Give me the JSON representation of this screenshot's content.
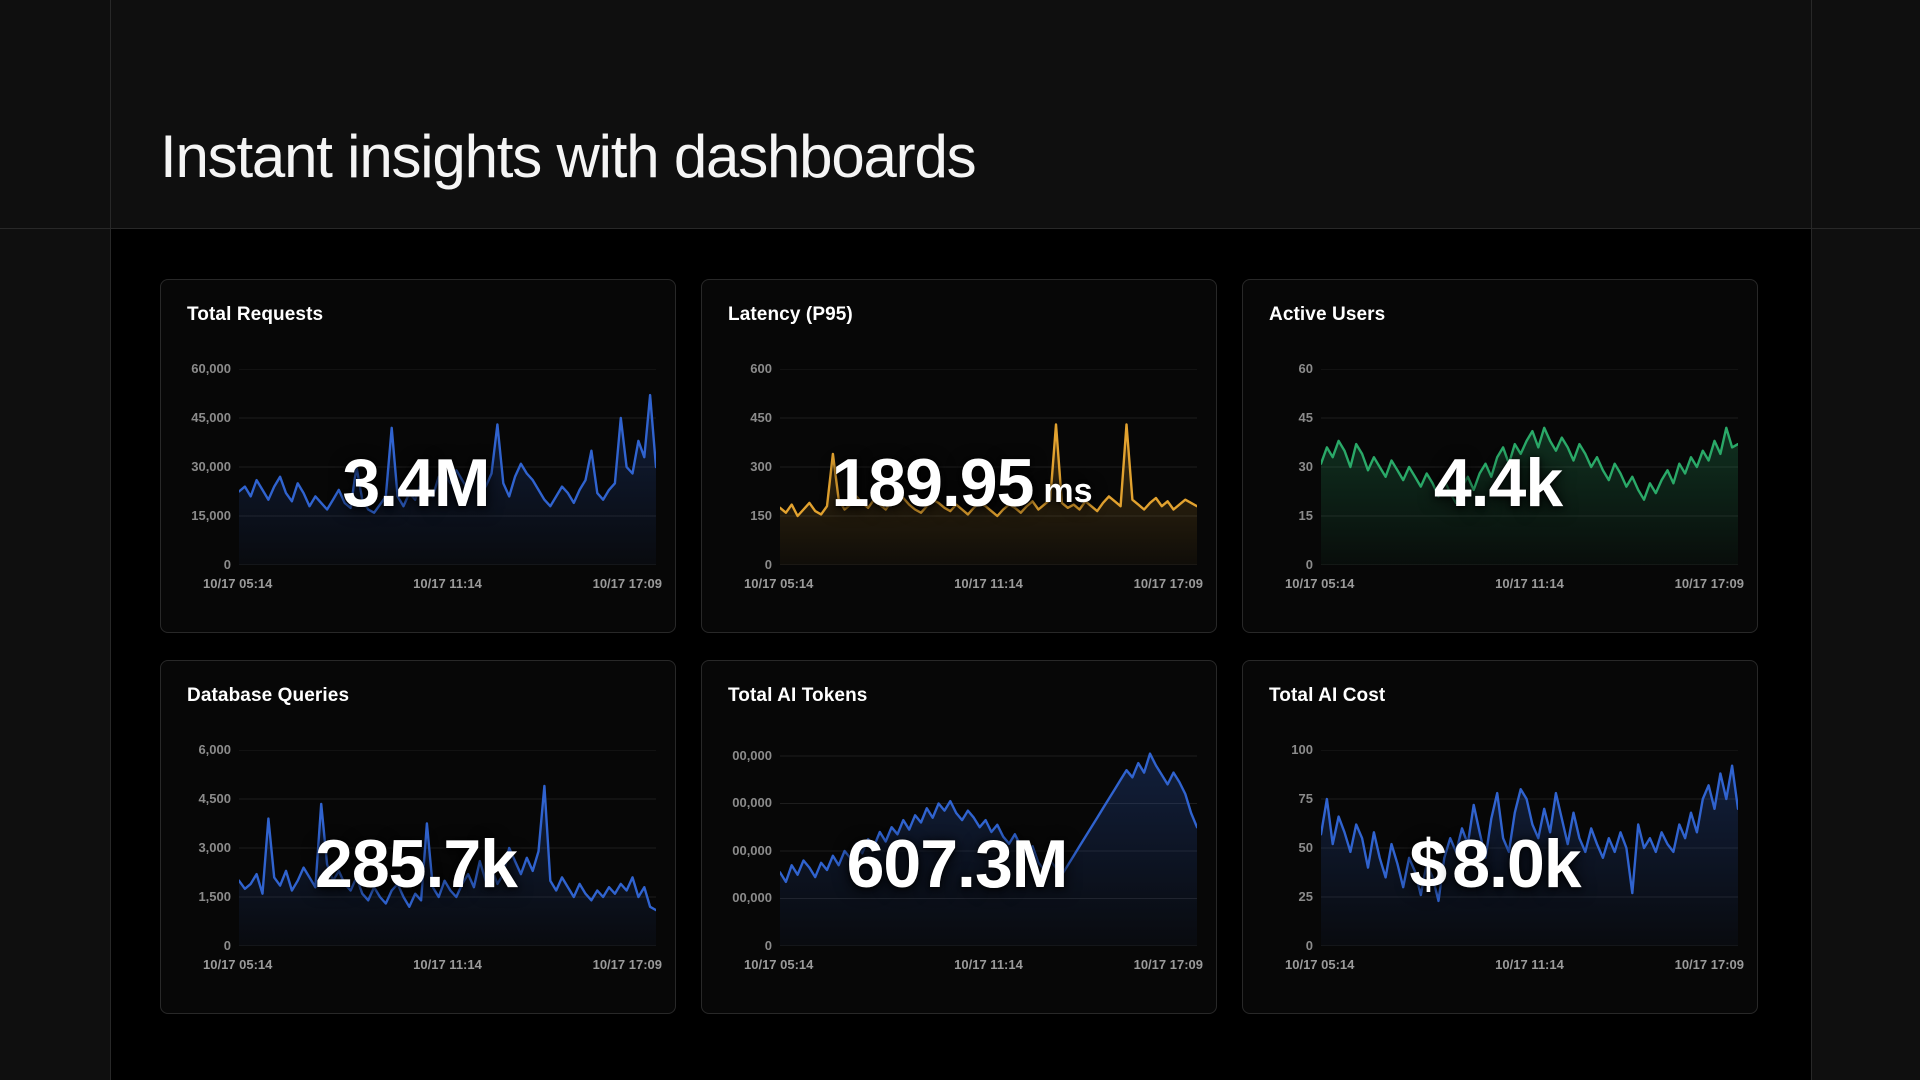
{
  "page": {
    "title": "Instant insights with dashboards"
  },
  "colors": {
    "page_bg": "#0f0f0f",
    "panel_bg": "#000000",
    "card_bg": "#070707",
    "card_border": "#282828",
    "grid_line": "#1e1e1e",
    "y_tick_color": "#8b8b8b",
    "x_tick_color": "#9a9a9a",
    "title_color": "#f5f5f5",
    "blue": "#3063cf",
    "orange": "#e2a22f",
    "green": "#2aa968"
  },
  "chart_data": [
    {
      "type": "line",
      "title": "Total Requests",
      "big_value": "3.4M",
      "value_prefix": "",
      "value_unit": "",
      "line_color": "#3063cf",
      "x": [
        "10/17 05:14",
        "10/17 11:14",
        "10/17 17:09"
      ],
      "ylim": [
        0,
        60000
      ],
      "yticks": [
        0,
        15000,
        30000,
        45000,
        60000
      ],
      "ytick_labels": [
        "0",
        "15,000",
        "30,000",
        "45,000",
        "60,000"
      ],
      "grid": true,
      "legend": "none",
      "values": [
        22500,
        24000,
        21000,
        26000,
        23000,
        20000,
        24000,
        27000,
        22000,
        19500,
        25000,
        22000,
        18000,
        21000,
        19000,
        17000,
        20000,
        23000,
        19000,
        17500,
        30000,
        20000,
        17000,
        16000,
        18500,
        21000,
        42000,
        21000,
        18000,
        22000,
        20000,
        25000,
        23000,
        21000,
        27000,
        28000,
        25000,
        29000,
        26000,
        23000,
        30000,
        27000,
        24000,
        28000,
        43000,
        25000,
        21000,
        27000,
        31000,
        28000,
        26000,
        23000,
        20000,
        18000,
        21000,
        24000,
        22000,
        19000,
        23000,
        26000,
        35000,
        22000,
        20000,
        23000,
        25000,
        45000,
        30000,
        28000,
        38000,
        33000,
        52000,
        30000
      ]
    },
    {
      "type": "line",
      "title": "Latency (P95)",
      "big_value": "189.95",
      "value_prefix": "",
      "value_unit": "ms",
      "line_color": "#e2a22f",
      "x": [
        "10/17 05:14",
        "10/17 11:14",
        "10/17 17:09"
      ],
      "ylim": [
        0,
        600
      ],
      "yticks": [
        0,
        150,
        300,
        450,
        600
      ],
      "ytick_labels": [
        "0",
        "150",
        "300",
        "450",
        "600"
      ],
      "grid": true,
      "legend": "none",
      "values": [
        175,
        160,
        185,
        150,
        170,
        190,
        165,
        155,
        180,
        340,
        200,
        170,
        185,
        210,
        190,
        175,
        200,
        185,
        170,
        195,
        220,
        205,
        185,
        170,
        160,
        180,
        200,
        190,
        175,
        165,
        185,
        170,
        155,
        175,
        190,
        180,
        165,
        150,
        170,
        185,
        175,
        160,
        180,
        195,
        170,
        185,
        200,
        430,
        190,
        175,
        185,
        170,
        195,
        180,
        165,
        190,
        210,
        195,
        180,
        430,
        200,
        185,
        170,
        190,
        205,
        180,
        195,
        170,
        185,
        200,
        190,
        180
      ]
    },
    {
      "type": "line",
      "title": "Active Users",
      "big_value": "4.4k",
      "value_prefix": "",
      "value_unit": "",
      "line_color": "#2aa968",
      "x": [
        "10/17 05:14",
        "10/17 11:14",
        "10/17 17:09"
      ],
      "ylim": [
        0,
        60
      ],
      "yticks": [
        0,
        15,
        30,
        45,
        60
      ],
      "ytick_labels": [
        "0",
        "15",
        "30",
        "45",
        "60"
      ],
      "grid": true,
      "legend": "none",
      "values": [
        31,
        36,
        33,
        38,
        35,
        30,
        37,
        34,
        29,
        33,
        30,
        27,
        32,
        29,
        26,
        30,
        27,
        24,
        28,
        25,
        21,
        26,
        22,
        19,
        24,
        27,
        23,
        28,
        31,
        27,
        33,
        36,
        31,
        37,
        34,
        38,
        41,
        36,
        42,
        38,
        35,
        39,
        36,
        32,
        37,
        34,
        30,
        33,
        29,
        26,
        31,
        28,
        24,
        27,
        23,
        20,
        25,
        22,
        26,
        29,
        25,
        31,
        28,
        33,
        30,
        35,
        32,
        38,
        34,
        42,
        36,
        37
      ]
    },
    {
      "type": "line",
      "title": "Database Queries",
      "big_value": "285.7k",
      "value_prefix": "",
      "value_unit": "",
      "line_color": "#3063cf",
      "x": [
        "10/17 05:14",
        "10/17 11:14",
        "10/17 17:09"
      ],
      "ylim": [
        0,
        6000
      ],
      "yticks": [
        0,
        1500,
        3000,
        4500,
        6000
      ],
      "ytick_labels": [
        "0",
        "1,500",
        "3,000",
        "4,500",
        "6,000"
      ],
      "grid": true,
      "legend": "none",
      "values": [
        2000,
        1750,
        1900,
        2200,
        1600,
        3900,
        2100,
        1850,
        2300,
        1700,
        2000,
        2400,
        2100,
        1800,
        4350,
        2500,
        2000,
        2300,
        1900,
        1700,
        2100,
        1600,
        1400,
        1800,
        1500,
        1300,
        1700,
        1900,
        1500,
        1200,
        1600,
        1400,
        3750,
        1800,
        1500,
        2000,
        1700,
        1500,
        1900,
        2200,
        1800,
        2600,
        2000,
        2400,
        1900,
        2200,
        3000,
        2600,
        2200,
        2700,
        2300,
        2900,
        4900,
        2000,
        1700,
        2100,
        1800,
        1500,
        1900,
        1600,
        1400,
        1700,
        1500,
        1800,
        1600,
        1900,
        1700,
        2100,
        1500,
        1800,
        1200,
        1100
      ]
    },
    {
      "type": "line",
      "title": "Total AI Tokens",
      "big_value": "607.3M",
      "value_prefix": "",
      "value_unit": "",
      "line_color": "#3063cf",
      "x": [
        "10/17 05:14",
        "10/17 11:14",
        "10/17 17:09"
      ],
      "ylim": [
        0,
        825000
      ],
      "yticks": [
        0,
        200000,
        400000,
        600000,
        800000
      ],
      "ytick_labels": [
        "0",
        "00,000",
        "00,000",
        "00,000",
        "00,000"
      ],
      "grid": true,
      "legend": "none",
      "values": [
        310000,
        270000,
        340000,
        300000,
        360000,
        330000,
        290000,
        350000,
        320000,
        380000,
        340000,
        400000,
        370000,
        430000,
        390000,
        450000,
        420000,
        480000,
        440000,
        500000,
        470000,
        530000,
        490000,
        550000,
        520000,
        580000,
        540000,
        600000,
        570000,
        610000,
        560000,
        530000,
        570000,
        540000,
        500000,
        530000,
        480000,
        510000,
        460000,
        430000,
        470000,
        420000,
        380000,
        420000,
        350000,
        320000,
        360000,
        330000,
        300000,
        340000,
        380000,
        420000,
        460000,
        500000,
        540000,
        580000,
        620000,
        660000,
        700000,
        740000,
        710000,
        770000,
        730000,
        810000,
        760000,
        720000,
        680000,
        730000,
        690000,
        640000,
        560000,
        500000
      ]
    },
    {
      "type": "line",
      "title": "Total AI Cost",
      "big_value": "8.0k",
      "value_prefix": "$",
      "value_unit": "",
      "line_color": "#3063cf",
      "x": [
        "10/17 05:14",
        "10/17 11:14",
        "10/17 17:09"
      ],
      "ylim": [
        0,
        100
      ],
      "yticks": [
        0,
        25,
        50,
        75,
        100
      ],
      "ytick_labels": [
        "0",
        "25",
        "50",
        "75",
        "100"
      ],
      "grid": true,
      "legend": "none",
      "values": [
        57,
        75,
        52,
        66,
        58,
        48,
        62,
        55,
        40,
        58,
        45,
        35,
        52,
        42,
        30,
        45,
        38,
        26,
        42,
        35,
        23,
        45,
        55,
        48,
        60,
        52,
        72,
        58,
        45,
        65,
        78,
        55,
        48,
        68,
        80,
        75,
        62,
        55,
        70,
        58,
        78,
        65,
        52,
        68,
        55,
        48,
        60,
        52,
        45,
        55,
        48,
        58,
        50,
        27,
        62,
        50,
        55,
        48,
        58,
        52,
        48,
        62,
        55,
        68,
        58,
        75,
        82,
        70,
        88,
        75,
        92,
        70
      ]
    }
  ]
}
